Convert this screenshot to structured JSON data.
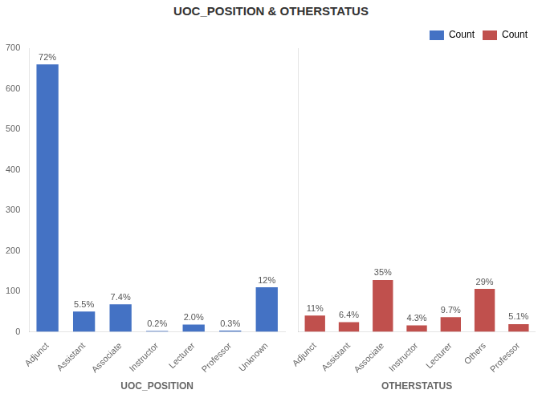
{
  "chart_data": [
    {
      "type": "bar",
      "title": "UOC_POSITION & OTHERSTATUS",
      "xlabel": "UOC_POSITION",
      "categories": [
        "Adjunct",
        "Assistant",
        "Associate",
        "Instructor",
        "Lecturer",
        "Professor",
        "Unknown"
      ],
      "series": [
        {
          "name": "Count",
          "color": "#4472C4",
          "values": [
            660,
            50,
            68,
            2,
            18,
            3,
            110
          ]
        }
      ],
      "annotations": [
        "72%",
        "5.5%",
        "7.4%",
        "0.2%",
        "2.0%",
        "0.3%",
        "12%"
      ],
      "ylim": [
        0,
        700
      ],
      "yticks": [
        0,
        100,
        200,
        300,
        400,
        500,
        600,
        700
      ],
      "grid": false
    },
    {
      "type": "bar",
      "xlabel": "OTHERSTATUS",
      "categories": [
        "Adjunct",
        "Assistant",
        "Associate",
        "Instructor",
        "Lecturer",
        "Others",
        "Professor"
      ],
      "series": [
        {
          "name": "Count",
          "color": "#C0504D",
          "values": [
            40,
            24,
            128,
            16,
            36,
            106,
            19
          ]
        }
      ],
      "annotations": [
        "11%",
        "6.4%",
        "35%",
        "4.3%",
        "9.7%",
        "29%",
        "5.1%"
      ],
      "ylim": [
        0,
        700
      ],
      "yticks": [
        0,
        100,
        200,
        300,
        400,
        500,
        600,
        700
      ],
      "grid": false,
      "tick_labels": "x",
      "legend": "upper right"
    }
  ]
}
